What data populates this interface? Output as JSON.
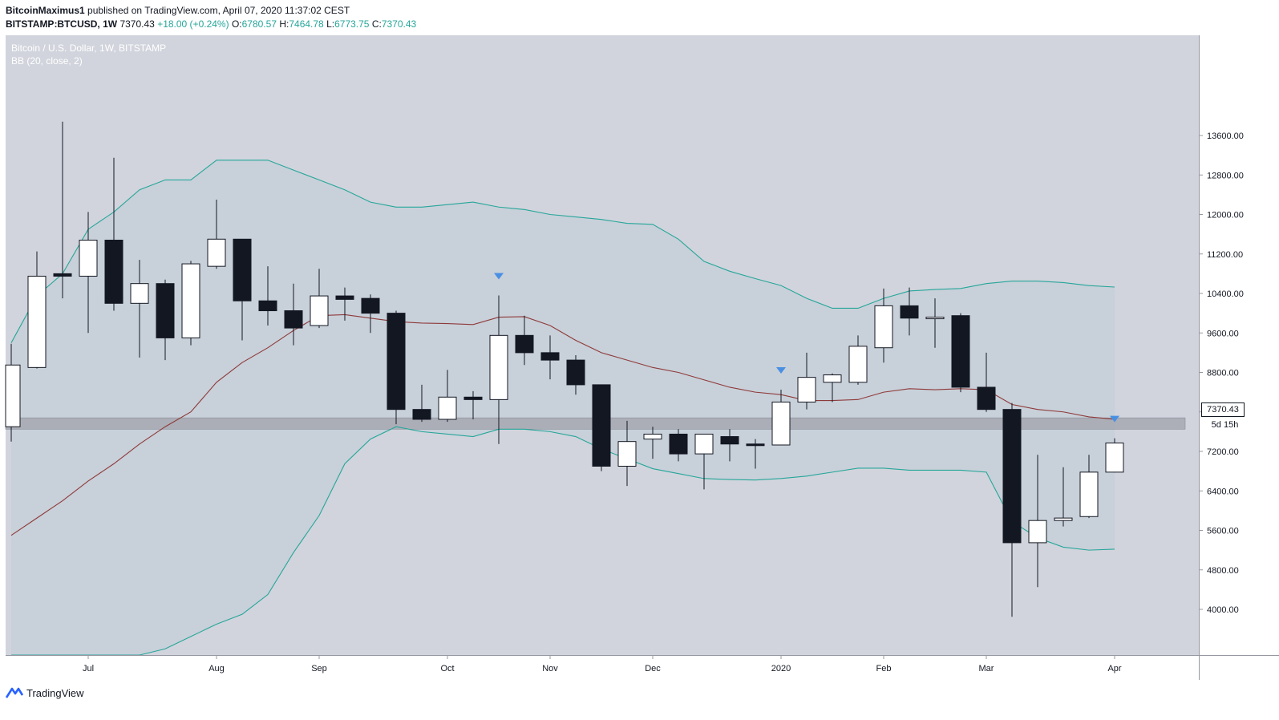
{
  "header": {
    "author": "BitcoinMaximus1",
    "published_text": "published on TradingView.com, April 07, 2020 11:37:02 CEST",
    "symbol": "BITSTAMP:BTCUSD, 1W",
    "last_price": "7370.43",
    "change": "+18.00 (+0.24%)",
    "o_label": "O:",
    "o_value": "6780.57",
    "h_label": "H:",
    "h_value": "7464.78",
    "l_label": "L:",
    "l_value": "6773.75",
    "c_label": "C:",
    "c_value": "7370.43"
  },
  "legend": {
    "title": "Bitcoin / U.S. Dollar, 1W, BITSTAMP",
    "indicator": "BB (20, close, 2)"
  },
  "price_tag": "7370.43",
  "timer_tag": "5d 15h",
  "footer": {
    "brand": "TradingView"
  },
  "colors": {
    "background": "#d1d4dc",
    "band_fill": "#c7cfd8",
    "band_line": "#26a69a",
    "basis_line": "#8e3a3a",
    "bull_candle": "#ffffff",
    "bear_candle": "#131722",
    "zone": "#a6a9b1",
    "marker": "#4a90e2"
  },
  "chart_data": {
    "type": "candlestick",
    "title": "Bitcoin / U.S. Dollar, 1W, BITSTAMP",
    "timeframe": "1W",
    "ylim": [
      3250,
      13800
    ],
    "y_ticks": [
      13600,
      12800,
      12000,
      11200,
      10400,
      9600,
      8800,
      8000,
      7200,
      6400,
      5600,
      4800,
      4000
    ],
    "y_tick_labels": [
      "13600.00",
      "12800.00",
      "12000.00",
      "11200.00",
      "10400.00",
      "9600.00",
      "8800.00",
      "8000.00",
      "7200.00",
      "6400.00",
      "5600.00",
      "4800.00",
      "4000.00"
    ],
    "x_labels": [
      {
        "label": "Jul",
        "index": 3
      },
      {
        "label": "Aug",
        "index": 8
      },
      {
        "label": "Sep",
        "index": 12
      },
      {
        "label": "Oct",
        "index": 17
      },
      {
        "label": "Nov",
        "index": 21
      },
      {
        "label": "Dec",
        "index": 25
      },
      {
        "label": "2020",
        "index": 30
      },
      {
        "label": "Feb",
        "index": 34
      },
      {
        "label": "Mar",
        "index": 38
      },
      {
        "label": "Apr",
        "index": 43
      }
    ],
    "candles": [
      {
        "o": 7700,
        "h": 9380,
        "l": 7400,
        "c": 8950
      },
      {
        "o": 8900,
        "h": 11250,
        "l": 8880,
        "c": 10750
      },
      {
        "o": 10800,
        "h": 13880,
        "l": 10300,
        "c": 10750
      },
      {
        "o": 10750,
        "h": 12050,
        "l": 9600,
        "c": 11480
      },
      {
        "o": 11480,
        "h": 13150,
        "l": 10050,
        "c": 10200
      },
      {
        "o": 10200,
        "h": 11080,
        "l": 9100,
        "c": 10600
      },
      {
        "o": 10600,
        "h": 10680,
        "l": 9050,
        "c": 9500
      },
      {
        "o": 9500,
        "h": 11060,
        "l": 9350,
        "c": 11000
      },
      {
        "o": 10950,
        "h": 12300,
        "l": 10900,
        "c": 11500
      },
      {
        "o": 11500,
        "h": 11500,
        "l": 9450,
        "c": 10250
      },
      {
        "o": 10250,
        "h": 10950,
        "l": 9750,
        "c": 10050
      },
      {
        "o": 10050,
        "h": 10600,
        "l": 9350,
        "c": 9700
      },
      {
        "o": 9750,
        "h": 10900,
        "l": 9700,
        "c": 10350
      },
      {
        "o": 10350,
        "h": 10520,
        "l": 9850,
        "c": 10280
      },
      {
        "o": 10300,
        "h": 10380,
        "l": 9600,
        "c": 10000
      },
      {
        "o": 10000,
        "h": 10050,
        "l": 7750,
        "c": 8050
      },
      {
        "o": 8050,
        "h": 8550,
        "l": 7800,
        "c": 7850
      },
      {
        "o": 7850,
        "h": 8850,
        "l": 7800,
        "c": 8300
      },
      {
        "o": 8300,
        "h": 8420,
        "l": 7850,
        "c": 8250
      },
      {
        "o": 8250,
        "h": 10360,
        "l": 7350,
        "c": 9550
      },
      {
        "o": 9550,
        "h": 9950,
        "l": 8950,
        "c": 9200
      },
      {
        "o": 9200,
        "h": 9550,
        "l": 8660,
        "c": 9050
      },
      {
        "o": 9050,
        "h": 9150,
        "l": 8350,
        "c": 8550
      },
      {
        "o": 8550,
        "h": 8550,
        "l": 6800,
        "c": 6900
      },
      {
        "o": 6900,
        "h": 7820,
        "l": 6500,
        "c": 7400
      },
      {
        "o": 7450,
        "h": 7700,
        "l": 7050,
        "c": 7550
      },
      {
        "o": 7550,
        "h": 7650,
        "l": 7000,
        "c": 7150
      },
      {
        "o": 7150,
        "h": 7550,
        "l": 6430,
        "c": 7550
      },
      {
        "o": 7500,
        "h": 7650,
        "l": 7000,
        "c": 7350
      },
      {
        "o": 7350,
        "h": 7450,
        "l": 6850,
        "c": 7330
      },
      {
        "o": 7330,
        "h": 8450,
        "l": 7330,
        "c": 8200
      },
      {
        "o": 8200,
        "h": 9200,
        "l": 8050,
        "c": 8700
      },
      {
        "o": 8600,
        "h": 8780,
        "l": 8200,
        "c": 8750
      },
      {
        "o": 8600,
        "h": 9550,
        "l": 8550,
        "c": 9330
      },
      {
        "o": 9300,
        "h": 10500,
        "l": 9000,
        "c": 10150
      },
      {
        "o": 10150,
        "h": 10520,
        "l": 9550,
        "c": 9900
      },
      {
        "o": 9900,
        "h": 10300,
        "l": 9300,
        "c": 9920
      },
      {
        "o": 9950,
        "h": 10000,
        "l": 8400,
        "c": 8500
      },
      {
        "o": 8500,
        "h": 9200,
        "l": 8000,
        "c": 8050
      },
      {
        "o": 8050,
        "h": 8180,
        "l": 3850,
        "c": 5350
      },
      {
        "o": 5350,
        "h": 7130,
        "l": 4450,
        "c": 5800
      },
      {
        "o": 5800,
        "h": 6880,
        "l": 5680,
        "c": 5850
      },
      {
        "o": 5880,
        "h": 7130,
        "l": 5850,
        "c": 6780
      },
      {
        "o": 6780,
        "h": 7465,
        "l": 6774,
        "c": 7370
      }
    ],
    "bb_basis": [
      5500,
      5850,
      6200,
      6600,
      6950,
      7350,
      7700,
      8000,
      8600,
      9000,
      9300,
      9650,
      9950,
      9970,
      9900,
      9830,
      9800,
      9790,
      9770,
      9920,
      9930,
      9750,
      9450,
      9200,
      9050,
      8900,
      8800,
      8650,
      8500,
      8400,
      8350,
      8230,
      8230,
      8250,
      8400,
      8470,
      8450,
      8470,
      8450,
      8150,
      8050,
      8000,
      7900,
      7850
    ],
    "bb_upper": [
      9400,
      10350,
      10800,
      11700,
      12050,
      12500,
      12700,
      12700,
      13100,
      13100,
      13100,
      12900,
      12700,
      12500,
      12250,
      12150,
      12150,
      12200,
      12250,
      12150,
      12100,
      12000,
      11950,
      11900,
      11820,
      11800,
      11500,
      11050,
      10850,
      10700,
      10560,
      10300,
      10100,
      10100,
      10300,
      10450,
      10480,
      10500,
      10600,
      10650,
      10650,
      10620,
      10560,
      10530
    ],
    "bb_lower": [
      1650,
      1800,
      2000,
      2200,
      2500,
      2850,
      3200,
      3450,
      3700,
      3900,
      4300,
      5150,
      5900,
      6950,
      7450,
      7700,
      7600,
      7550,
      7500,
      7650,
      7650,
      7600,
      7500,
      7250,
      7050,
      6850,
      6750,
      6650,
      6630,
      6620,
      6650,
      6700,
      6780,
      6860,
      6860,
      6820,
      6820,
      6820,
      6780,
      5780,
      5450,
      5260,
      5200,
      5220
    ],
    "support_zone": [
      7650,
      7880
    ],
    "markers": [
      19,
      30,
      43
    ],
    "last_price": 7370.43,
    "grid": false,
    "legend_position": "top-left"
  }
}
